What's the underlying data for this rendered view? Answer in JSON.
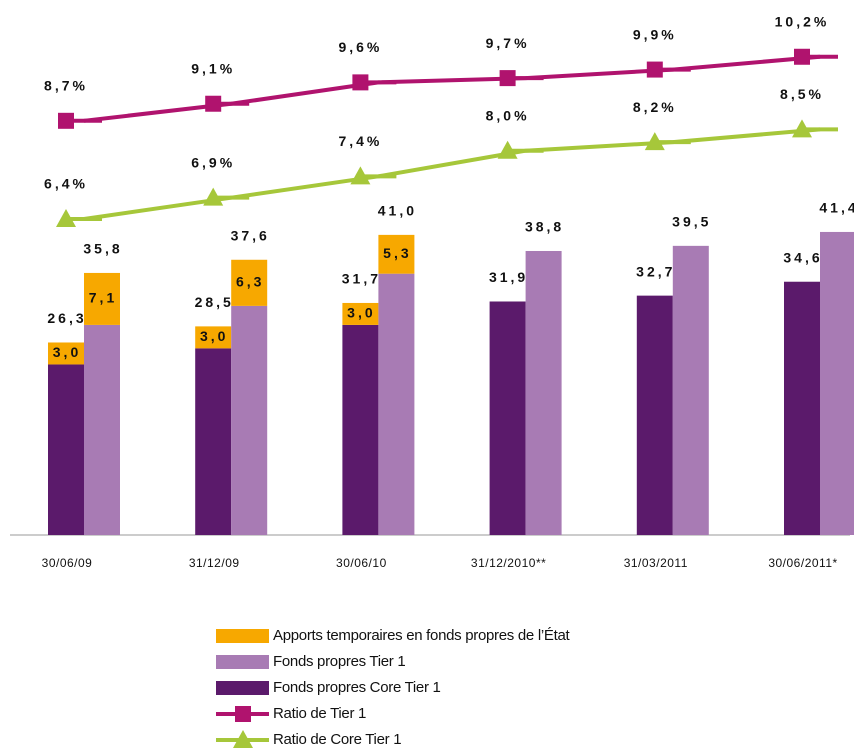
{
  "chart_data": {
    "type": "bar_line",
    "categories": [
      "30/06/09",
      "31/12/09",
      "30/06/10",
      "31/12/2010**",
      "31/03/2011",
      "30/06/2011*"
    ],
    "ylim": [
      0,
      70
    ],
    "y2lim": [
      -1,
      11
    ],
    "series": [
      {
        "name": "Apports temporaires en fonds propres de l’État",
        "type": "bar",
        "color": "#f7a800",
        "values_core": [
          3.0,
          3.0,
          3.0,
          null,
          null,
          null
        ],
        "value_labels_core": [
          "3,0",
          "3,0",
          "3,0",
          null,
          null,
          null
        ],
        "values_tier1": [
          7.1,
          6.3,
          5.3,
          null,
          null,
          null
        ],
        "value_labels_tier1": [
          "7,1",
          "6,3",
          "5,3",
          null,
          null,
          null
        ]
      },
      {
        "name": "Fonds propres Tier 1",
        "type": "bar",
        "color": "#a87bb4",
        "values": [
          28.7,
          31.3,
          35.7,
          38.8,
          39.5,
          41.4
        ]
      },
      {
        "name": "Fonds propres Core Tier 1",
        "type": "bar",
        "color": "#5b1a6b",
        "values": [
          23.3,
          25.5,
          28.7,
          31.9,
          32.7,
          34.6
        ]
      },
      {
        "name": "Ratio de Tier 1",
        "type": "line",
        "axis": "y2",
        "color": "#b0136e",
        "marker": "square",
        "values": [
          8.7,
          9.1,
          9.6,
          9.7,
          9.9,
          10.2
        ],
        "value_labels": [
          "8,7%",
          "9,1%",
          "9,6%",
          "9,7%",
          "9,9%",
          "10,2%"
        ]
      },
      {
        "name": "Ratio de Core Tier 1",
        "type": "line",
        "axis": "y2",
        "color": "#a6c73a",
        "marker": "triangle",
        "values": [
          6.4,
          6.9,
          7.4,
          8.0,
          8.2,
          8.5
        ],
        "value_labels": [
          "6,4%",
          "6,9%",
          "7,4%",
          "8,0%",
          "8,2%",
          "8,5%"
        ]
      }
    ],
    "totals": [
      {
        "values": [
          26.3,
          28.5,
          31.7,
          31.9,
          32.7,
          34.6
        ],
        "value_labels": [
          "26,3",
          "28,5",
          "31,7",
          "31,9",
          "32,7",
          "34,6"
        ]
      },
      {
        "values": [
          35.8,
          37.6,
          41.0,
          38.8,
          39.5,
          41.4
        ],
        "value_labels": [
          "35,8",
          "37,6",
          "41,0",
          "38,8",
          "39,5",
          "41,4"
        ]
      }
    ]
  }
}
